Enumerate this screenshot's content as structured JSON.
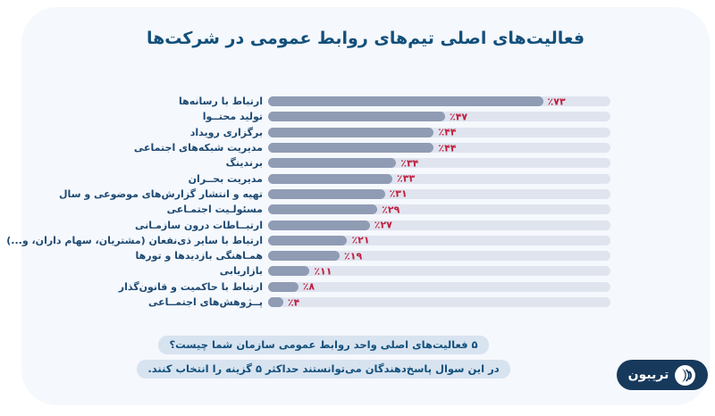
{
  "title": "فعالیت‌های اصلی تیم‌های روابط عمومی در شرکت‌ها",
  "chart_data": {
    "type": "bar",
    "orientation": "horizontal",
    "title": "فعالیت‌های اصلی تیم‌های روابط عمومی در شرکت‌ها",
    "unit": "percent",
    "xlim": [
      0,
      91
    ],
    "grid": false,
    "legend": "none",
    "categories": [
      "ارتباط با رسانه‌ها",
      "تولید محتــوا",
      "برگزاری رویداد",
      "مدیریت شبکه‌های اجتماعی",
      "برندینگ",
      "مدیریت بحــران",
      "تهیه و انتشار گزارش‌های موضوعی و سال",
      "مسئولـیت اجتمـاعی",
      "ارتبــاطات درون سازمـانی",
      "ارتباط با سایر ذی‌نفعان (مشتریان، سهام داران، و...)",
      "همـاهنگی بازدیدها و تورها",
      "بازاریابی",
      "ارتباط با حاکمیت و قانون‌گذار",
      "پــژوهش‌های اجتمــاعی"
    ],
    "values": [
      73,
      47,
      44,
      44,
      34,
      33,
      31,
      29,
      27,
      21,
      19,
      11,
      8,
      4
    ],
    "value_labels": [
      "٪۷۳",
      "٪۴۷",
      "٪۴۴",
      "٪۴۴",
      "٪۳۴",
      "٪۳۳",
      "٪۳۱",
      "٪۲۹",
      "٪۲۷",
      "٪۲۱",
      "٪۱۹",
      "٪۱۱",
      "٪۸",
      "٪۴"
    ],
    "bar_color": "#909cb4",
    "track_color": "#dfe4ef",
    "value_color": "#c01e3e"
  },
  "footnotes": [
    "۵ فعالیت‌های اصلی واحد روابط عمومی سازمان شما چیست؟",
    "در این سوال پاسخ‌دهندگان می‌توانستند حداکثر ۵ گزینه را انتخاب کنند."
  ],
  "logo": {
    "text": "تریبون",
    "icon": "tribune-speaker-icon",
    "bg_color": "#16395c"
  },
  "colors": {
    "page_background": "#ffffff",
    "card_background": "#f5f8fc",
    "title_text": "#12507b",
    "category_text": "#1d4972",
    "badge_background": "#d8e3f0",
    "badge_text": "#11507c",
    "logo_background": "#16395c"
  }
}
